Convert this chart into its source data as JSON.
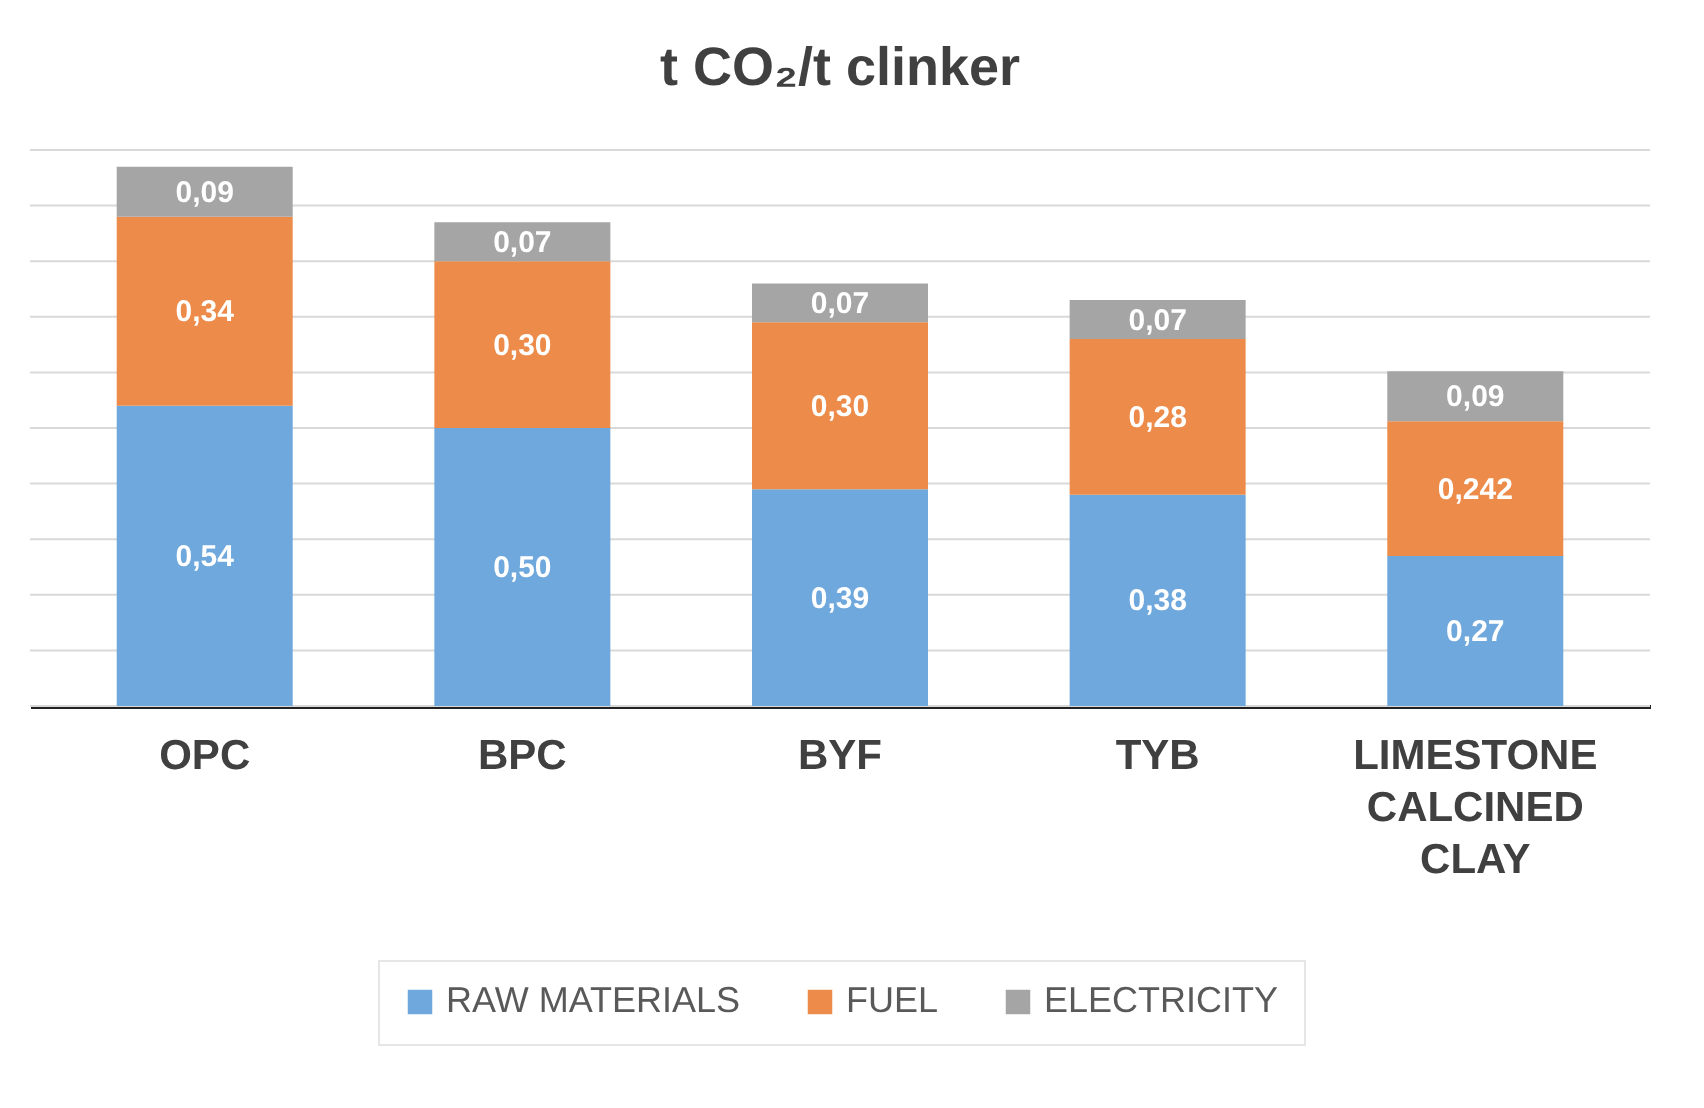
{
  "chart_data": {
    "type": "bar",
    "stacked": true,
    "title": "t CO₂/t clinker",
    "categories": [
      "OPC",
      "BPC",
      "BYF",
      "TYB",
      "LIMESTONE CALCINED CLAY"
    ],
    "series": [
      {
        "name": "RAW MATERIALS",
        "color": "#6fa8dc",
        "values": [
          0.54,
          0.5,
          0.39,
          0.38,
          0.27
        ],
        "value_labels": [
          "0,54",
          "0,50",
          "0,39",
          "0,38",
          "0,27"
        ]
      },
      {
        "name": "FUEL",
        "color": "#ed8c4a",
        "values": [
          0.34,
          0.3,
          0.3,
          0.28,
          0.242
        ],
        "value_labels": [
          "0,34",
          "0,30",
          "0,30",
          "0,28",
          "0,242"
        ]
      },
      {
        "name": "ELECTRICITY",
        "color": "#a5a5a5",
        "values": [
          0.09,
          0.07,
          0.07,
          0.07,
          0.09
        ],
        "value_labels": [
          "0,09",
          "0,07",
          "0,07",
          "0,07",
          "0,09"
        ]
      }
    ],
    "ylim": [
      0,
      1
    ],
    "yticks": [
      {
        "value": 0,
        "label": null
      },
      {
        "value": 0.1,
        "label": null
      },
      {
        "value": 0.2,
        "label": null
      },
      {
        "value": 0.3,
        "label": null
      },
      {
        "value": 0.4,
        "label": null
      },
      {
        "value": 0.5,
        "label": null
      },
      {
        "value": 0.6,
        "label": null
      },
      {
        "value": 0.7,
        "label": null
      },
      {
        "value": 0.8,
        "label": null
      },
      {
        "value": 0.9,
        "label": null
      },
      {
        "value": 1,
        "label": null
      }
    ],
    "grid": "y",
    "tick_labels": "x",
    "legend": "bottom"
  }
}
